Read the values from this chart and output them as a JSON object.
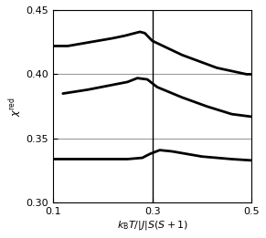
{
  "title": "",
  "xlabel": "$k_{\\mathrm{B}}T/|J|S(S+1)$",
  "ylabel": "$\\chi^{\\mathrm{red}}$",
  "xlim": [
    0.1,
    0.5
  ],
  "ylim": [
    0.3,
    0.45
  ],
  "xticks": [
    0.1,
    0.3,
    0.5
  ],
  "yticks": [
    0.3,
    0.35,
    0.4,
    0.45
  ],
  "hgrid_vals": [
    0.35,
    0.4,
    0.45
  ],
  "vline_x": 0.3,
  "curve_upper": {
    "x": [
      0.1,
      0.13,
      0.16,
      0.19,
      0.22,
      0.245,
      0.265,
      0.275,
      0.285,
      0.3,
      0.36,
      0.43,
      0.49,
      0.5
    ],
    "y": [
      0.422,
      0.422,
      0.424,
      0.426,
      0.428,
      0.43,
      0.432,
      0.433,
      0.432,
      0.426,
      0.415,
      0.405,
      0.4,
      0.4
    ]
  },
  "curve_middle": {
    "x": [
      0.12,
      0.17,
      0.21,
      0.25,
      0.27,
      0.29,
      0.31,
      0.36,
      0.41,
      0.46,
      0.5
    ],
    "y": [
      0.385,
      0.388,
      0.391,
      0.394,
      0.397,
      0.396,
      0.39,
      0.382,
      0.375,
      0.369,
      0.367
    ]
  },
  "curve_lower": {
    "x": [
      0.1,
      0.15,
      0.2,
      0.25,
      0.28,
      0.295,
      0.315,
      0.34,
      0.4,
      0.46,
      0.5
    ],
    "y": [
      0.334,
      0.334,
      0.334,
      0.334,
      0.335,
      0.338,
      0.341,
      0.34,
      0.336,
      0.334,
      0.333
    ]
  },
  "line_color": "#000000",
  "line_width": 2.0,
  "grid_color": "#999999",
  "background_color": "#ffffff"
}
